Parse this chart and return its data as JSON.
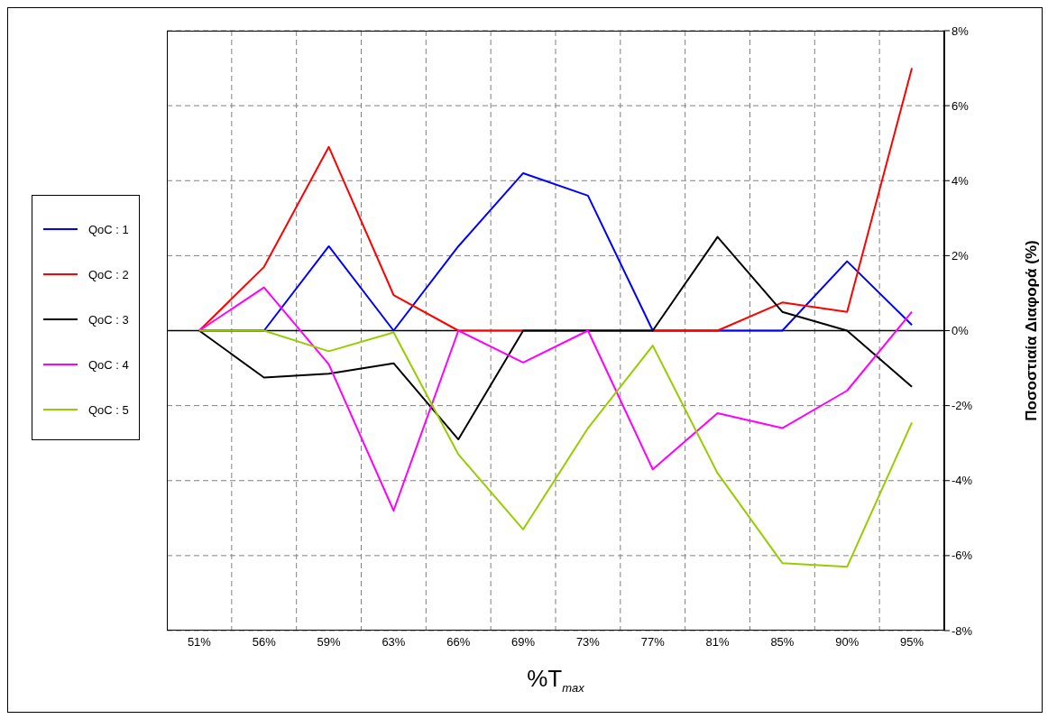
{
  "chart_data": {
    "type": "line",
    "xlabel": "%T$_{max}$",
    "ylabel": "Ποσοστιαία Διαφορά (%)",
    "categories": [
      "51%",
      "56%",
      "59%",
      "63%",
      "66%",
      "69%",
      "73%",
      "77%",
      "81%",
      "85%",
      "90%",
      "95%"
    ],
    "series": [
      {
        "name": "QoC : 1",
        "color": "#0000ff",
        "values": [
          0,
          0,
          2.25,
          0,
          2.25,
          4.2,
          3.6,
          0,
          0,
          0,
          1.85,
          0.15
        ]
      },
      {
        "name": "QoC : 2",
        "color": "#ff0000",
        "values": [
          0,
          1.7,
          4.9,
          0.95,
          0,
          0,
          0,
          0,
          0,
          0.75,
          0.5,
          7.0
        ]
      },
      {
        "name": "QoC : 3",
        "color": "#000000",
        "values": [
          0,
          -1.25,
          -1.15,
          -0.87,
          -2.9,
          0,
          0,
          0,
          2.5,
          0.5,
          0,
          -1.5
        ]
      },
      {
        "name": "QoC : 4",
        "color": "#ff00ff",
        "values": [
          0,
          1.15,
          -0.9,
          -4.8,
          0,
          -0.85,
          0,
          -3.7,
          -2.2,
          -2.6,
          -1.6,
          0.5
        ]
      },
      {
        "name": "QoC : 5",
        "color": "#99cc00",
        "values": [
          0,
          0,
          -0.55,
          -0.05,
          -3.3,
          -5.3,
          -2.6,
          -0.4,
          -3.8,
          -6.2,
          -6.3,
          -2.45
        ]
      }
    ],
    "ylim": [
      -8,
      8
    ],
    "yticks": [
      {
        "value": -8,
        "label": "-8%"
      },
      {
        "value": -6,
        "label": "-6%"
      },
      {
        "value": -4,
        "label": "-4%"
      },
      {
        "value": -2,
        "label": "-2%"
      },
      {
        "value": 0,
        "label": "0%"
      },
      {
        "value": 2,
        "label": "2%"
      },
      {
        "value": 4,
        "label": "4%"
      },
      {
        "value": 6,
        "label": "6%"
      },
      {
        "value": 8,
        "label": "8%"
      }
    ],
    "ref_lines": [
      {
        "axis": "y",
        "value": 0,
        "color": "#000000"
      }
    ],
    "grid": true,
    "legend": "left",
    "marker": "none",
    "line_style": "solid"
  }
}
